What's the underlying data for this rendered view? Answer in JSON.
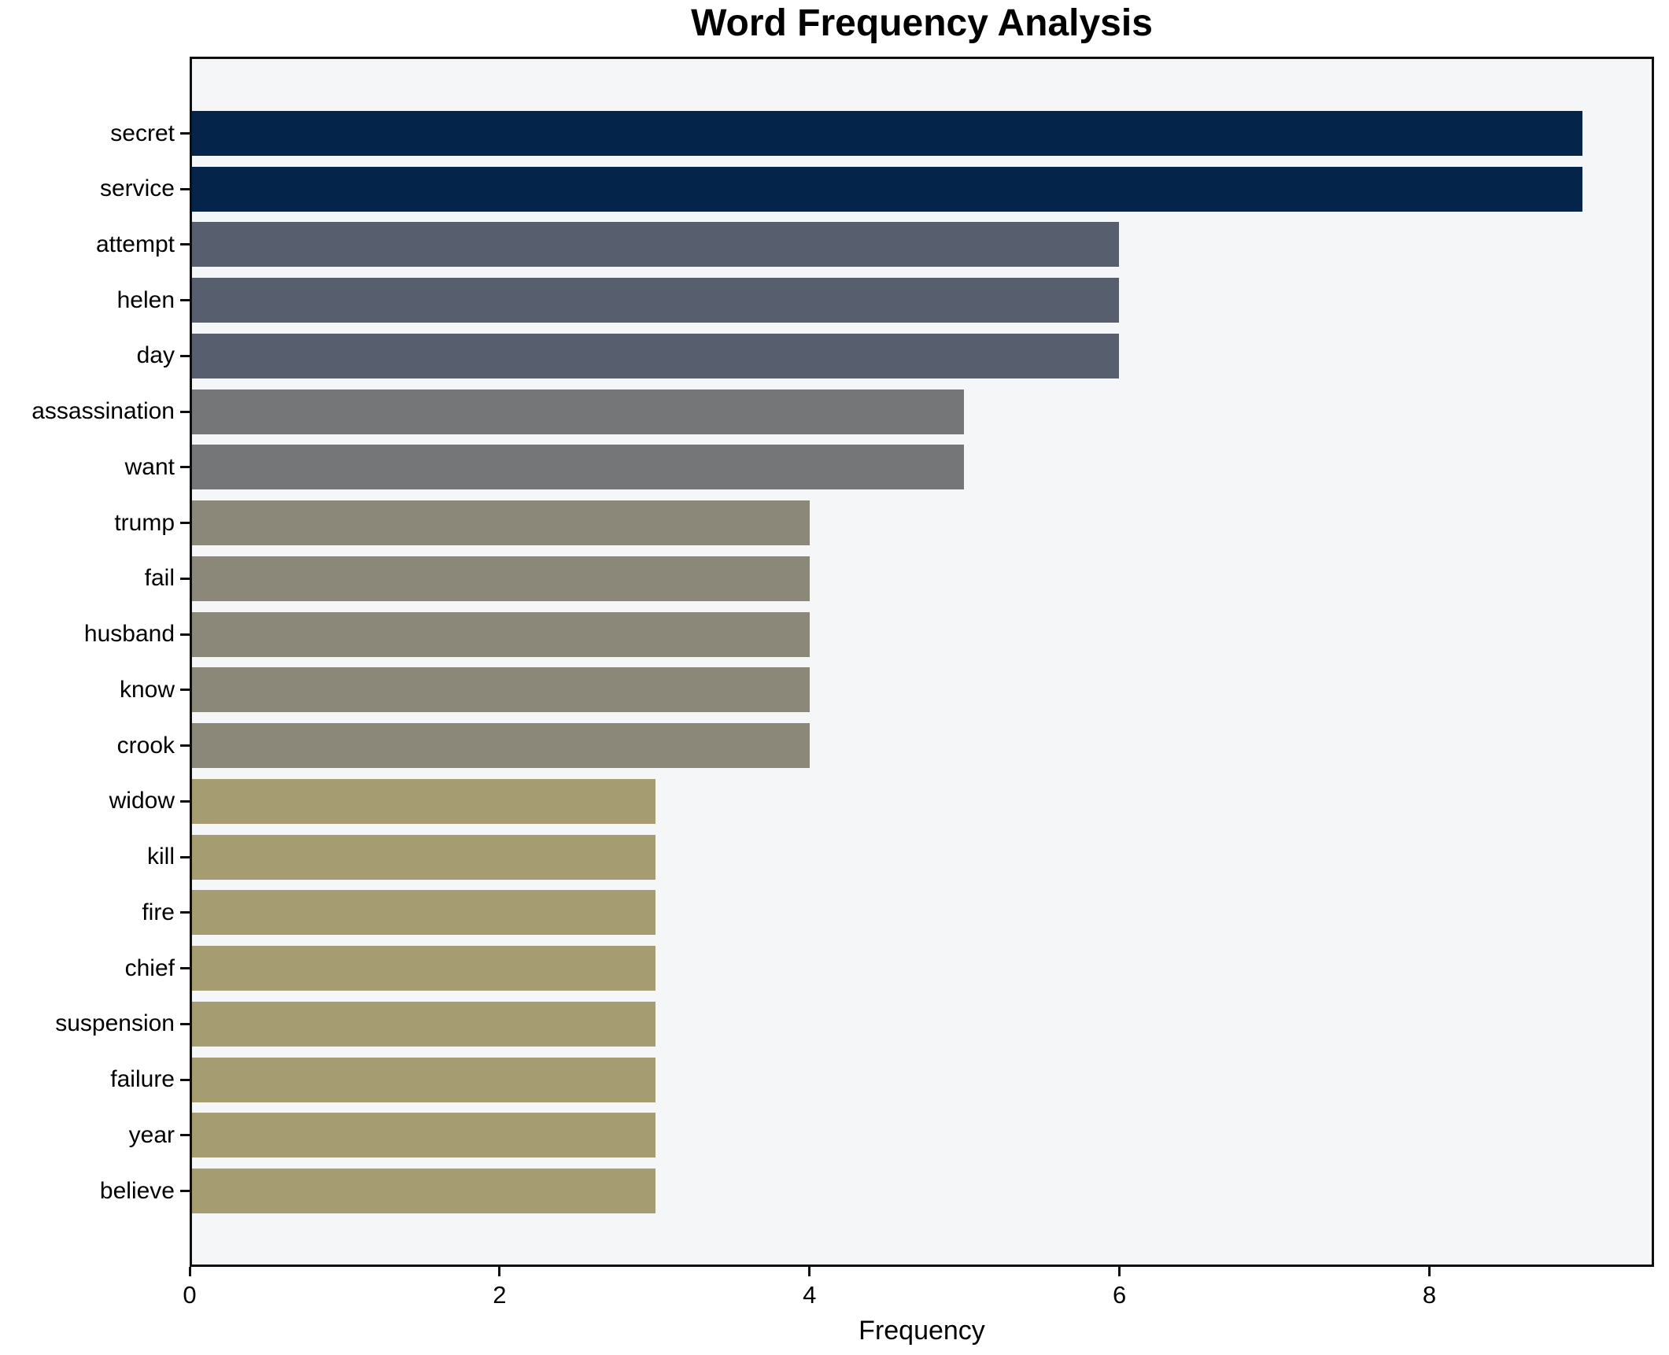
{
  "chart_data": {
    "type": "bar",
    "orientation": "horizontal",
    "title": "Word Frequency Analysis",
    "xlabel": "Frequency",
    "ylabel": "",
    "categories": [
      "secret",
      "service",
      "attempt",
      "helen",
      "day",
      "assassination",
      "want",
      "trump",
      "fail",
      "husband",
      "know",
      "crook",
      "widow",
      "kill",
      "fire",
      "chief",
      "suspension",
      "failure",
      "year",
      "believe"
    ],
    "values": [
      9,
      9,
      6,
      6,
      6,
      5,
      5,
      4,
      4,
      4,
      4,
      4,
      3,
      3,
      3,
      3,
      3,
      3,
      3,
      3
    ],
    "bar_colors": [
      "#042449",
      "#042449",
      "#575f6e",
      "#575f6e",
      "#575f6e",
      "#747678",
      "#747678",
      "#8b8779",
      "#8b8779",
      "#8b8779",
      "#8b8779",
      "#8b8779",
      "#a59c72",
      "#a59c72",
      "#a59c72",
      "#a59c72",
      "#a59c72",
      "#a59c72",
      "#a59c72",
      "#a59c72"
    ],
    "xticks": [
      0,
      2,
      4,
      6,
      8
    ],
    "xtick_labels": [
      "0",
      "2",
      "4",
      "6",
      "8"
    ],
    "xlim": [
      0,
      9.45
    ],
    "grid": false,
    "legend": null,
    "colors": {
      "figure_background": "#ffffff",
      "plot_background": "#f5f6f7",
      "spine": "#0f0f0f",
      "text": "#000000"
    }
  }
}
